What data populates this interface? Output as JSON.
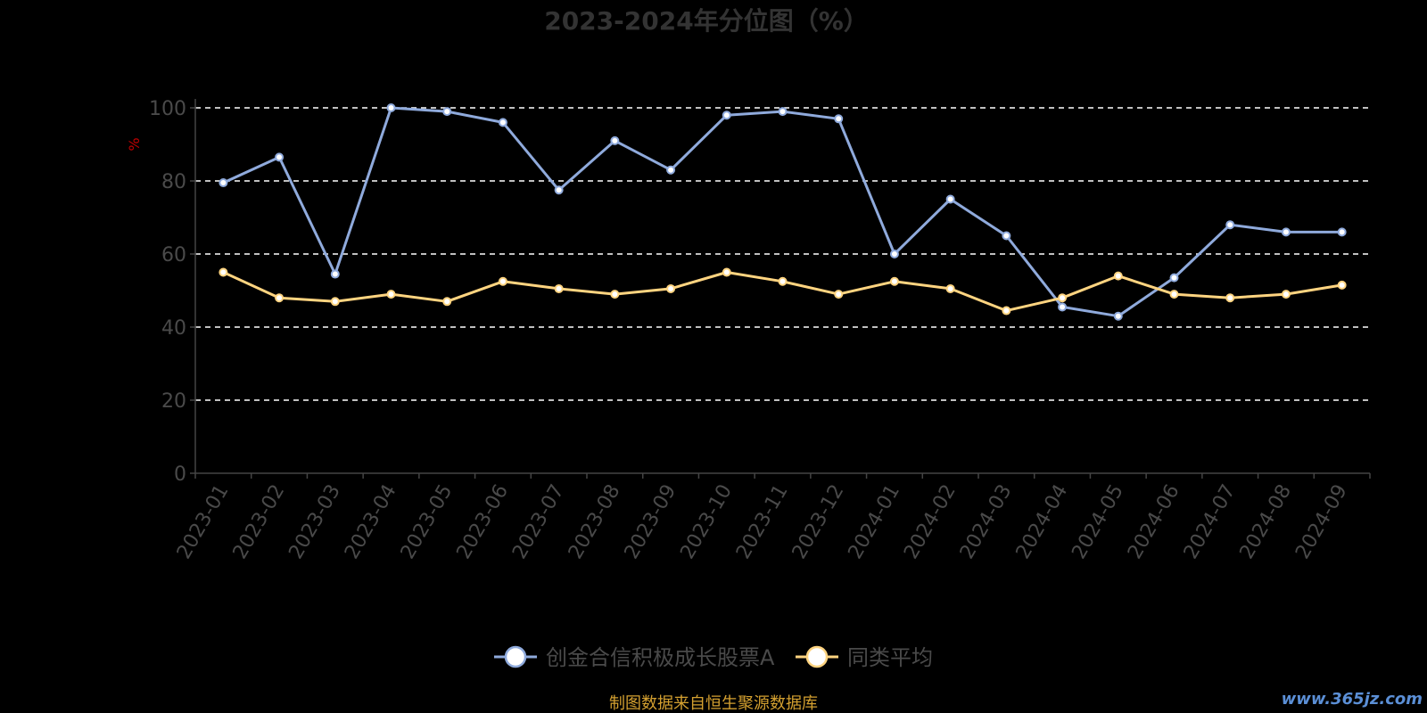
{
  "chart_data": {
    "type": "line",
    "title": "2023-2024年分位图（%）",
    "ylabel": "%",
    "ylim": [
      0,
      100
    ],
    "yticks": [
      0,
      20,
      40,
      60,
      80,
      100
    ],
    "grid": true,
    "legend_position": "bottom",
    "categories": [
      "2023-01",
      "2023-02",
      "2023-03",
      "2023-04",
      "2023-05",
      "2023-06",
      "2023-07",
      "2023-08",
      "2023-09",
      "2023-10",
      "2023-11",
      "2023-12",
      "2024-01",
      "2024-02",
      "2024-03",
      "2024-04",
      "2024-05",
      "2024-06",
      "2024-07",
      "2024-08",
      "2024-09"
    ],
    "series": [
      {
        "name": "创金合信积极成长股票A",
        "color": "#8faadc",
        "values": [
          79.5,
          86.5,
          54.5,
          100,
          99,
          96,
          77.5,
          91,
          83,
          98,
          99,
          97,
          60,
          75,
          65,
          45.5,
          43,
          53.5,
          68,
          66,
          66
        ]
      },
      {
        "name": "同类平均",
        "color": "#ffd480",
        "values": [
          55,
          48,
          47,
          49,
          47,
          52.5,
          50.5,
          49,
          50.5,
          55,
          52.5,
          49,
          52.5,
          50.5,
          44.5,
          48,
          54,
          49,
          48,
          49,
          51.5
        ]
      }
    ]
  },
  "footer": {
    "source": "制图数据来自恒生聚源数据库",
    "watermark": "www.365jz.com"
  }
}
